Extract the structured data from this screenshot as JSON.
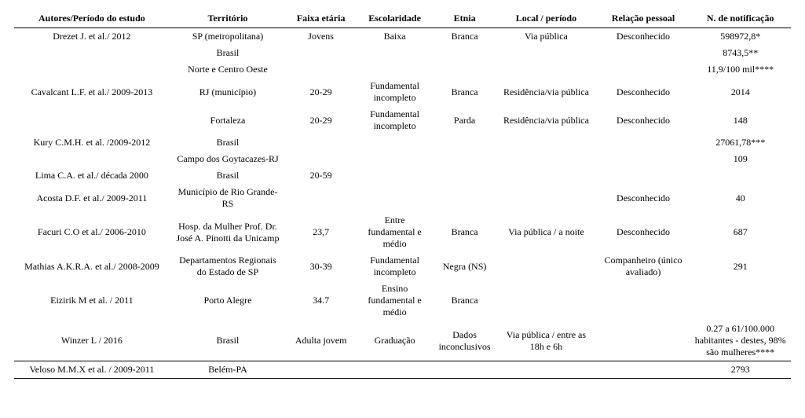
{
  "table": {
    "columns": [
      "Autores/Período do estudo",
      "Território",
      "Faixa etária",
      "Escolaridade",
      "Etnia",
      "Local / período",
      "Relação pessoal",
      "N. de notificação"
    ],
    "rows": [
      [
        "Drezet J. et al./ 2012",
        "SP  (metropolitana)",
        "Jovens",
        "Baixa",
        "Branca",
        "Via pública",
        "Desconhecido",
        "598972,8*"
      ],
      [
        "",
        "Brasil",
        "",
        "",
        "",
        "",
        "",
        "8743,5**"
      ],
      [
        "",
        "Norte e Centro Oeste",
        "",
        "",
        "",
        "",
        "",
        "11,9/100 mil****"
      ],
      [
        "Cavalcant L.F. et al./ 2009-2013",
        "RJ (município)",
        "20-29",
        "Fundamental incompleto",
        "Branca",
        "Residência/via pública",
        "Desconhecido",
        "2014"
      ],
      [
        "",
        "Fortaleza",
        "20-29",
        "Fundamental incompleto",
        "Parda",
        "Residência/via pública",
        "Desconhecido",
        "148"
      ],
      [
        "Kury C.M.H. et al. /2009-2012",
        "Brasil",
        "",
        "",
        "",
        "",
        "",
        "27061,78***"
      ],
      [
        "",
        "Campo dos Goytacazes-RJ",
        "",
        "",
        "",
        "",
        "",
        "109"
      ],
      [
        "Lima C.A. et al./ década 2000",
        "Brasil",
        "20-59",
        "",
        "",
        "",
        "",
        ""
      ],
      [
        "Acosta D.F. et al./ 2009-2011",
        "Município de Rio Grande-RS",
        "",
        "",
        "",
        "",
        "Desconhecido",
        "40"
      ],
      [
        "Facuri C.O et al./ 2006-2010",
        "Hosp. da Mulher Prof. Dr. José A. Pinotti da Unicamp",
        "23,7",
        "Entre fundamental e médio",
        "Branca",
        "Via pública / a noite",
        "Desconhecido",
        "687"
      ],
      [
        "Mathias A.K.R.A. et al./ 2008-2009",
        "Departamentos Regionais do Estado de SP",
        "30-39",
        "Fundamental incompleto",
        "Negra (NS)",
        "",
        "Companheiro (único avaliado)",
        "291"
      ],
      [
        "Eizirik M et al. / 2011",
        "Porto Alegre",
        "34.7",
        "Ensino fundamental e médio",
        "Branca",
        "",
        "",
        ""
      ],
      [
        "Winzer L / 2016",
        "Brasil",
        "Adulta jovem",
        "Graduação",
        "Dados inconclusivos",
        "Via pública / entre as 18h e 6h",
        "",
        "0.27 a 61/100.000 habitantes - destes, 98%  são mulheres****"
      ],
      [
        "Veloso M.M.X et al. / 2009-2011",
        "Belém-PA",
        "",
        "",
        "",
        "",
        "",
        "2793"
      ]
    ]
  }
}
